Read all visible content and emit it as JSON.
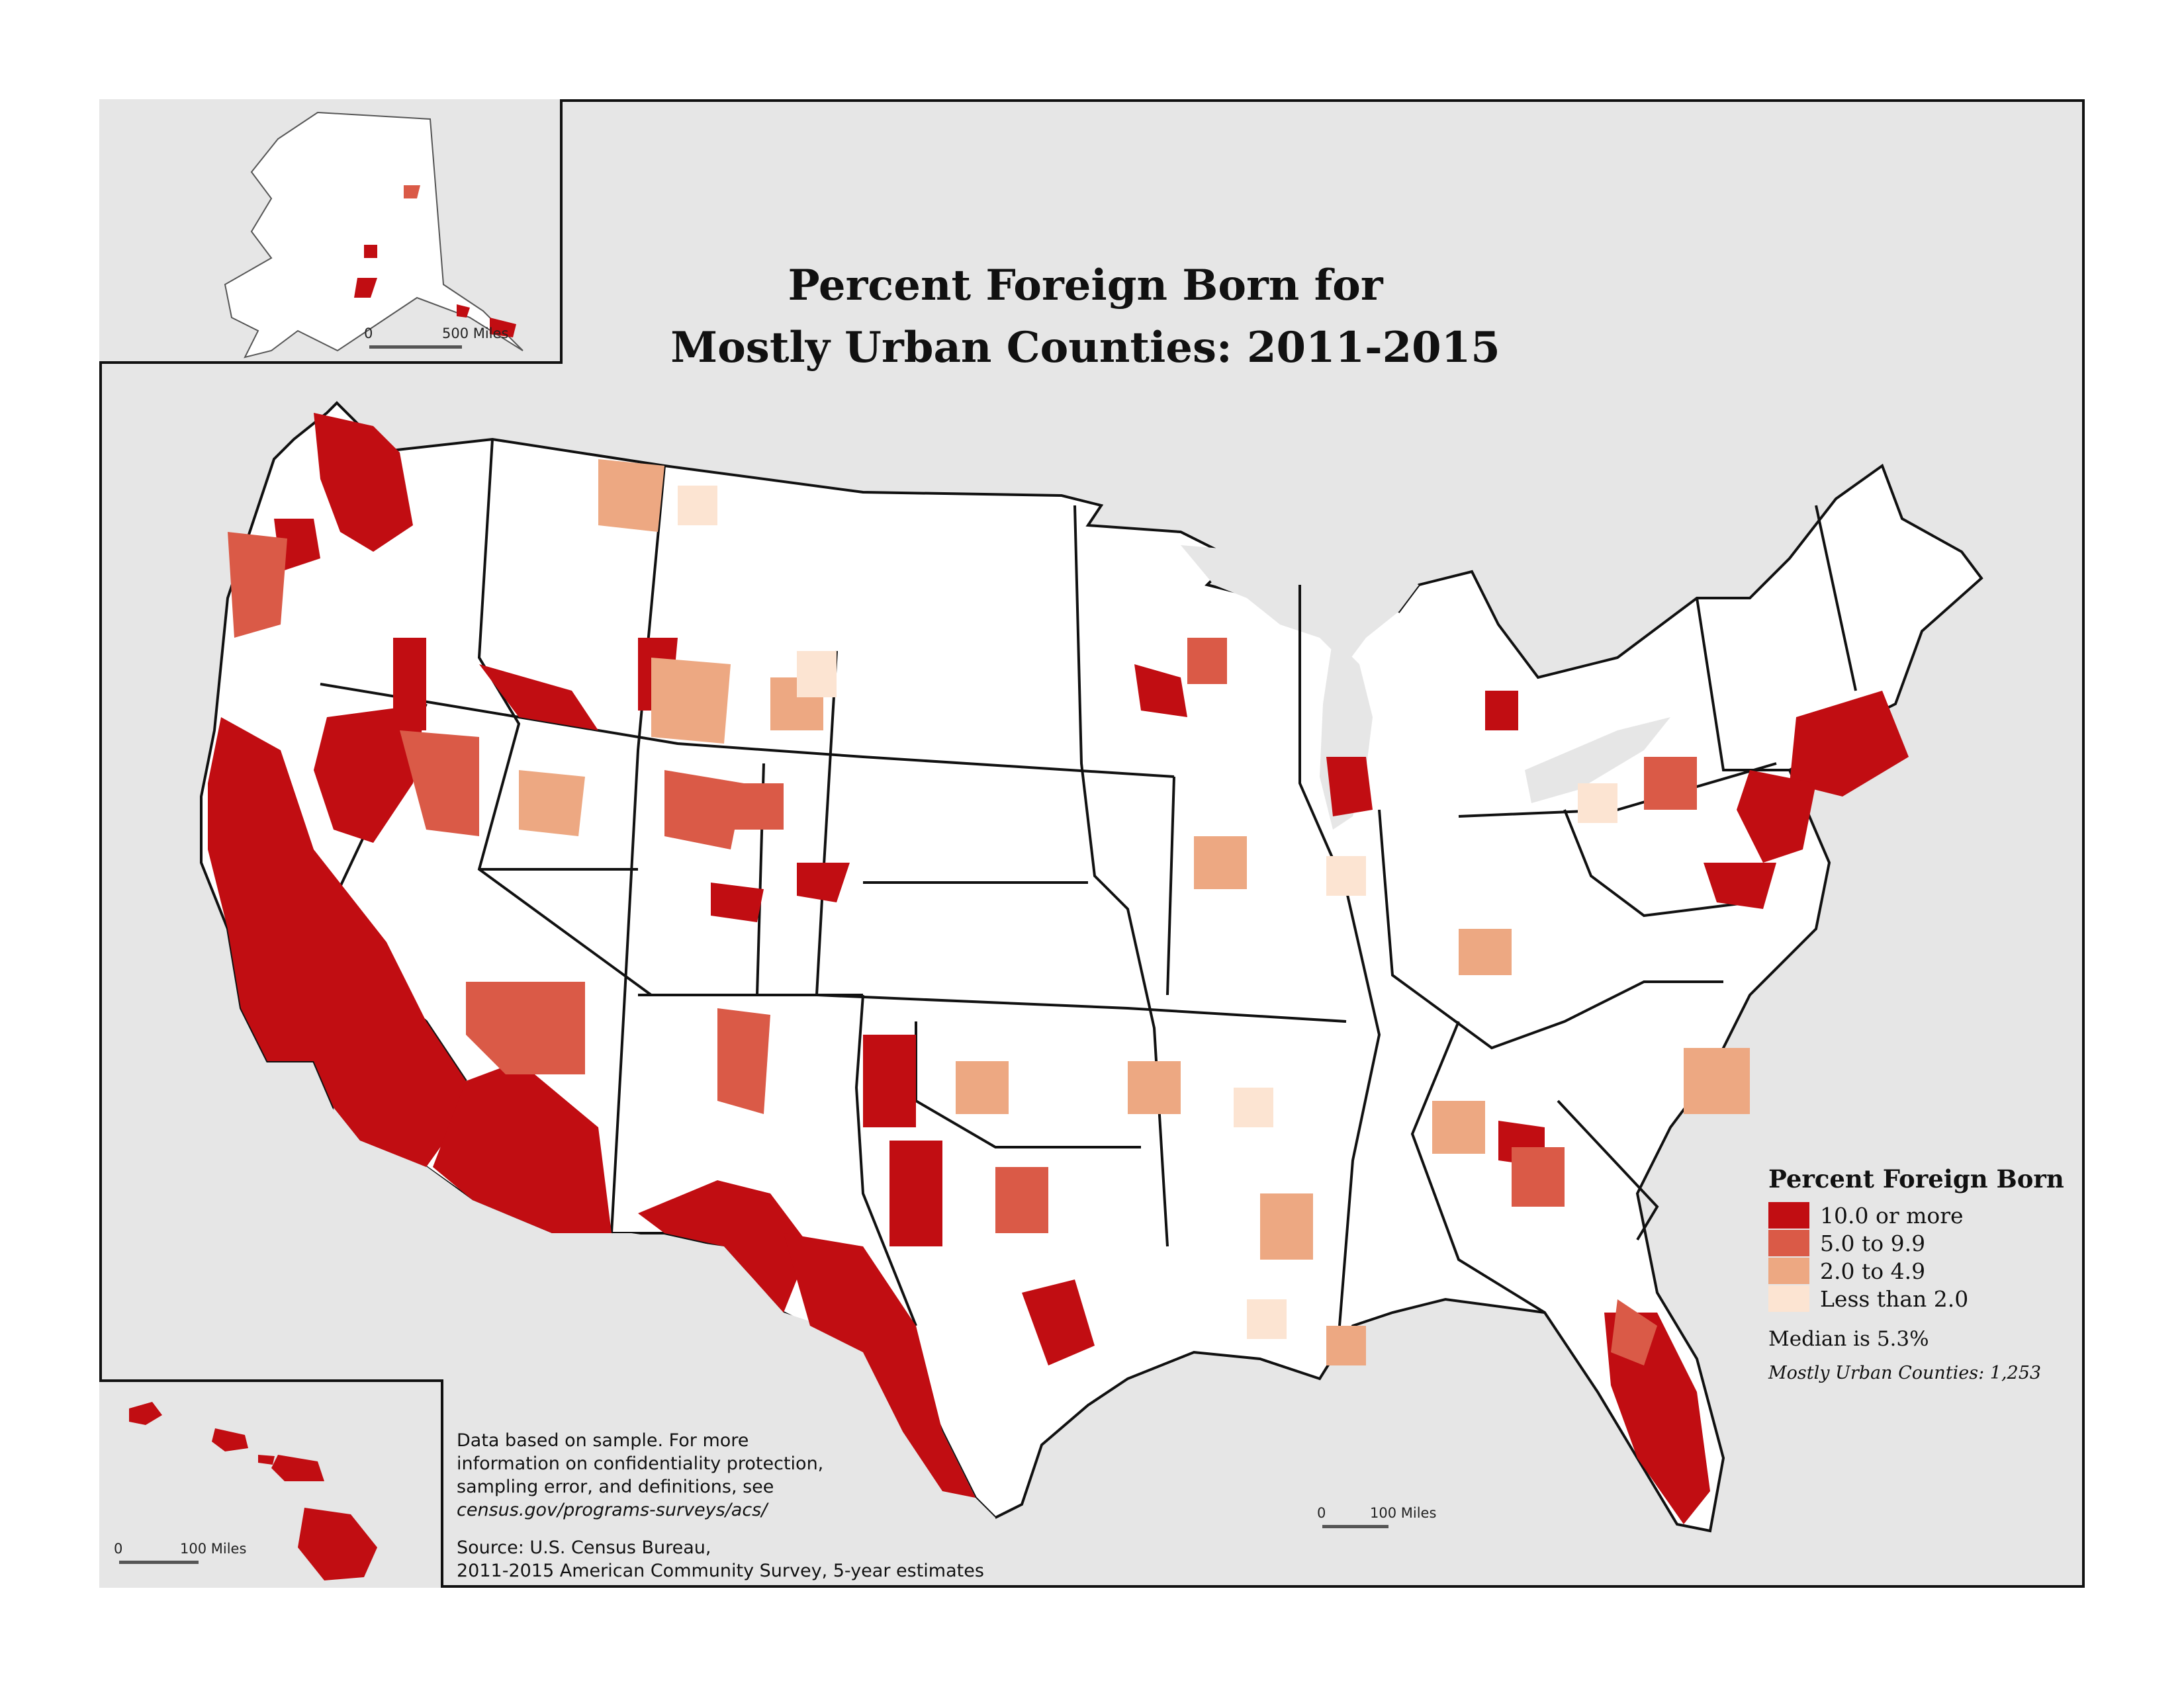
{
  "title": {
    "line1": "Percent Foreign Born for",
    "line2": "Mostly Urban Counties: 2011-2015"
  },
  "legend": {
    "title": "Percent Foreign Born",
    "classes": [
      {
        "label": "10.0 or more",
        "color": "#c10d12"
      },
      {
        "label": "5.0 to 9.9",
        "color": "#da5a47"
      },
      {
        "label": "2.0 to 4.9",
        "color": "#eda882"
      },
      {
        "label": "Less than 2.0",
        "color": "#fce4d2"
      }
    ],
    "median": "Median is 5.3%",
    "count": "Mostly Urban Counties: 1,253"
  },
  "notes": {
    "line1": "Data based on sample. For more",
    "line2": "information on confidentiality protection,",
    "line3": "sampling error, and definitions, see",
    "line4": "census.gov/programs-surveys/acs/",
    "source1": "Source: U.S. Census Bureau,",
    "source2": "2011-2015 American Community Survey, 5-year estimates"
  },
  "scalebars": {
    "main": {
      "zero": "0",
      "label": "100 Miles"
    },
    "alaska": {
      "zero": "0",
      "label": "500 Miles"
    },
    "hawaii": {
      "zero": "0",
      "label": "100 Miles"
    }
  },
  "colors": {
    "background": "#e6e6e6",
    "land": "#ffffff",
    "border": "#111111"
  }
}
